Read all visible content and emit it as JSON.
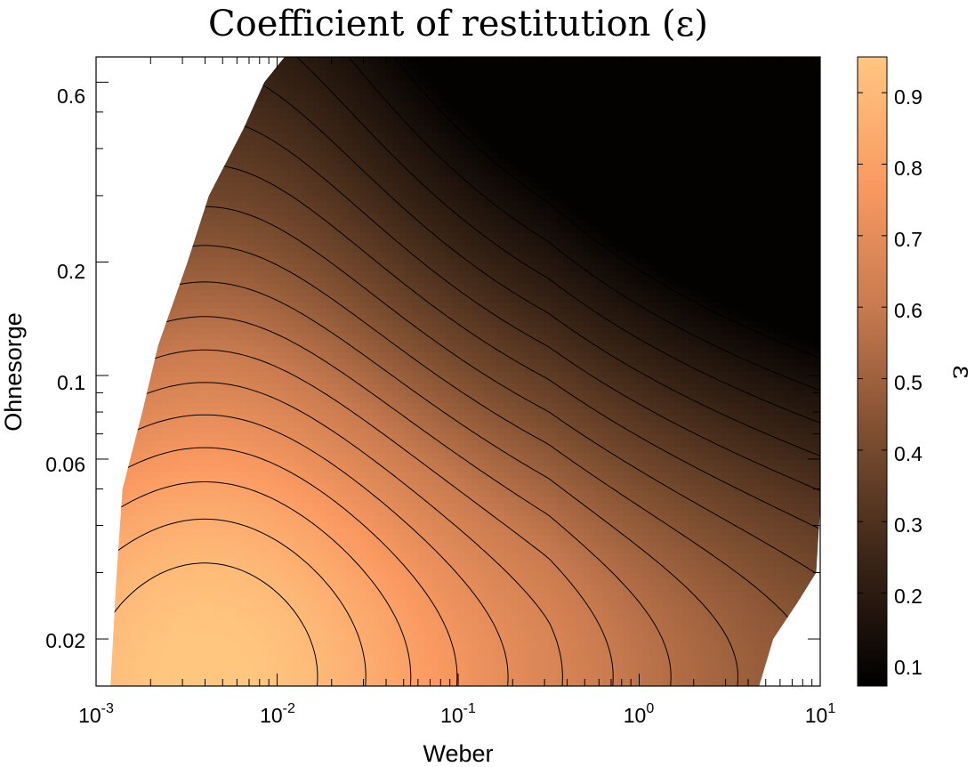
{
  "chart_data": {
    "type": "contour",
    "title": "Coefficient of restitution (ε)",
    "xlabel": "Weber",
    "ylabel": "Ohnesorge",
    "colorbar_label": "ε",
    "x_scale": "log",
    "y_scale": "log",
    "xlim": [
      0.001,
      10
    ],
    "ylim": [
      0.015,
      0.7
    ],
    "x_ticks": [
      {
        "value": 0.001,
        "base": "10",
        "exp": "-3"
      },
      {
        "value": 0.01,
        "base": "10",
        "exp": "-2"
      },
      {
        "value": 0.1,
        "base": "10",
        "exp": "-1"
      },
      {
        "value": 1,
        "base": "10",
        "exp": "0"
      },
      {
        "value": 10,
        "base": "10",
        "exp": "1"
      }
    ],
    "y_ticks": [
      {
        "value": 0.02,
        "label": "0.02"
      },
      {
        "value": 0.06,
        "label": "0.06"
      },
      {
        "value": 0.1,
        "label": "0.1"
      },
      {
        "value": 0.2,
        "label": "0.2"
      },
      {
        "value": 0.6,
        "label": "0.6"
      }
    ],
    "colorbar_range": [
      0.07,
      0.95
    ],
    "colorbar_ticks": [
      {
        "value": 0.1,
        "label": "0.1"
      },
      {
        "value": 0.2,
        "label": "0.2"
      },
      {
        "value": 0.3,
        "label": "0.3"
      },
      {
        "value": 0.4,
        "label": "0.4"
      },
      {
        "value": 0.5,
        "label": "0.5"
      },
      {
        "value": 0.6,
        "label": "0.6"
      },
      {
        "value": 0.7,
        "label": "0.7"
      },
      {
        "value": 0.8,
        "label": "0.8"
      },
      {
        "value": 0.9,
        "label": "0.9"
      }
    ],
    "colormap": "copper",
    "colormap_stops": [
      "#000000",
      "#3a2416",
      "#7d4e30",
      "#c87a4f",
      "#fa9a62",
      "#ffc680"
    ],
    "contour_levels": [
      0.9,
      0.85,
      0.8,
      0.75,
      0.7,
      0.65,
      0.6,
      0.55,
      0.5,
      0.45,
      0.4,
      0.35,
      0.3,
      0.25,
      0.2,
      0.15,
      0.1
    ],
    "valid_region_left_edge": [
      {
        "ohnesorge": 0.7,
        "weber": 0.011
      },
      {
        "ohnesorge": 0.6,
        "weber": 0.0085
      },
      {
        "ohnesorge": 0.45,
        "weber": 0.0065
      },
      {
        "ohnesorge": 0.3,
        "weber": 0.0042
      },
      {
        "ohnesorge": 0.2,
        "weber": 0.0032
      },
      {
        "ohnesorge": 0.12,
        "weber": 0.0022
      },
      {
        "ohnesorge": 0.08,
        "weber": 0.0018
      },
      {
        "ohnesorge": 0.05,
        "weber": 0.0014
      },
      {
        "ohnesorge": 0.03,
        "weber": 0.0013
      },
      {
        "ohnesorge": 0.015,
        "weber": 0.0012
      }
    ],
    "valid_region_right_edge": [
      {
        "ohnesorge": 0.015,
        "weber": 4.6
      },
      {
        "ohnesorge": 0.02,
        "weber": 5.5
      },
      {
        "ohnesorge": 0.025,
        "weber": 7.5
      },
      {
        "ohnesorge": 0.03,
        "weber": 9.5
      },
      {
        "ohnesorge": 0.045,
        "weber": 10
      }
    ]
  }
}
